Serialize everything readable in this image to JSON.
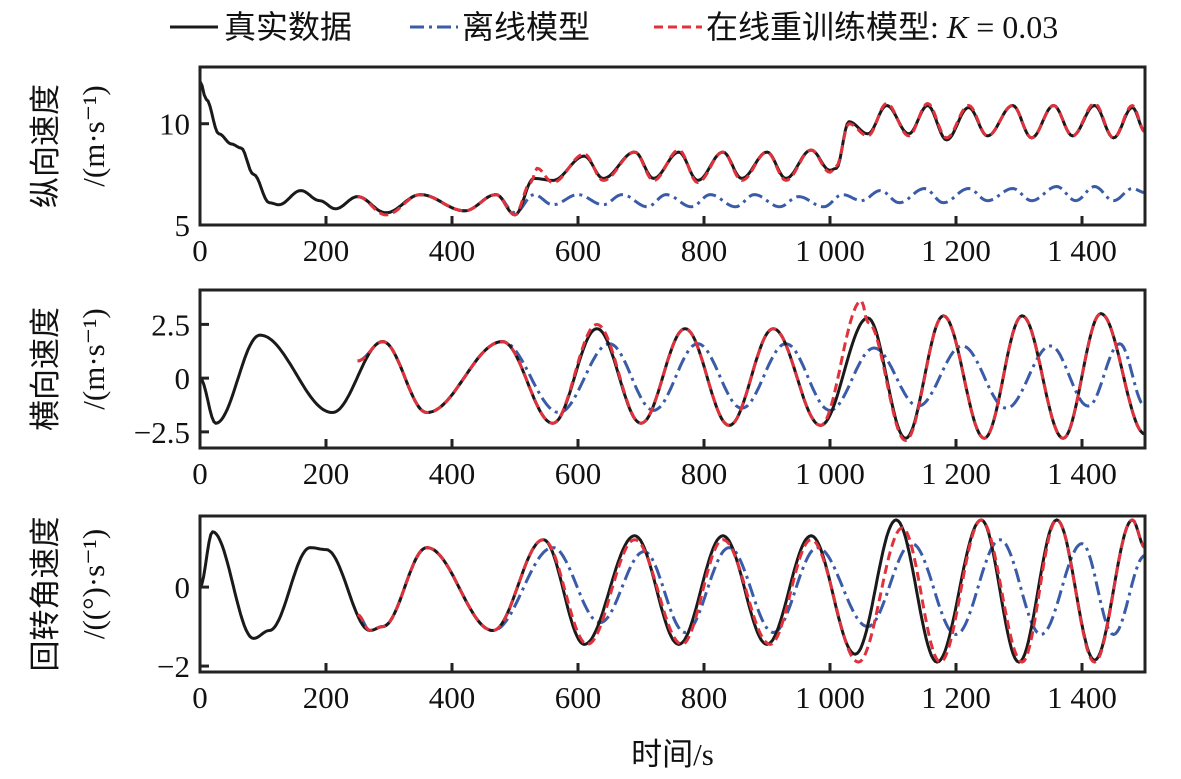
{
  "legend": {
    "true_label": "真实数据",
    "offline_label": "离线模型",
    "online_label": "在线重训练模型: ",
    "online_k": "K",
    "online_k_value": " = 0.03"
  },
  "colors": {
    "true": "#1a1a1a",
    "offline": "#3a5ba8",
    "online": "#e0323c"
  },
  "chart_data": [
    {
      "type": "line",
      "ylabel": "纵向速度",
      "yunit": "/(m·s⁻¹)",
      "xlim": [
        0,
        1500
      ],
      "ylim": [
        5,
        12.8
      ],
      "xticks": [
        0,
        200,
        400,
        600,
        800,
        1000,
        1200,
        1400
      ],
      "xtick_labels": [
        "0",
        "200",
        "400",
        "600",
        "800",
        "1 000",
        "1 200",
        "1 400"
      ],
      "yticks": [
        5,
        10
      ],
      "ytick_labels": [
        "5",
        "10"
      ],
      "series": [
        {
          "key": "true",
          "points": [
            [
              0,
              12.1
            ],
            [
              10,
              11.2
            ],
            [
              30,
              9.5
            ],
            [
              50,
              9.0
            ],
            [
              65,
              8.8
            ],
            [
              85,
              7.5
            ],
            [
              110,
              6.1
            ],
            [
              125,
              6.0
            ],
            [
              160,
              6.7
            ],
            [
              190,
              6.2
            ],
            [
              215,
              5.8
            ],
            [
              250,
              6.4
            ],
            [
              295,
              5.6
            ],
            [
              350,
              6.5
            ],
            [
              420,
              5.7
            ],
            [
              470,
              6.5
            ],
            [
              500,
              5.5
            ],
            [
              530,
              7.3
            ],
            [
              560,
              7.2
            ],
            [
              610,
              8.4
            ],
            [
              640,
              7.3
            ],
            [
              690,
              8.6
            ],
            [
              720,
              7.3
            ],
            [
              760,
              8.6
            ],
            [
              790,
              7.2
            ],
            [
              830,
              8.6
            ],
            [
              860,
              7.3
            ],
            [
              900,
              8.6
            ],
            [
              930,
              7.3
            ],
            [
              970,
              8.7
            ],
            [
              1000,
              7.7
            ],
            [
              1010,
              7.8
            ],
            [
              1030,
              10.1
            ],
            [
              1060,
              9.5
            ],
            [
              1090,
              10.9
            ],
            [
              1125,
              9.5
            ],
            [
              1155,
              10.9
            ],
            [
              1185,
              9.2
            ],
            [
              1220,
              10.8
            ],
            [
              1250,
              9.4
            ],
            [
              1290,
              10.9
            ],
            [
              1320,
              9.3
            ],
            [
              1355,
              10.9
            ],
            [
              1385,
              9.4
            ],
            [
              1420,
              10.9
            ],
            [
              1450,
              9.3
            ],
            [
              1480,
              10.8
            ],
            [
              1500,
              9.6
            ]
          ]
        },
        {
          "key": "offline",
          "points": [
            [
              250,
              6.4
            ],
            [
              295,
              5.6
            ],
            [
              350,
              6.5
            ],
            [
              420,
              5.7
            ],
            [
              470,
              6.5
            ],
            [
              500,
              5.6
            ],
            [
              530,
              6.5
            ],
            [
              560,
              6.0
            ],
            [
              600,
              6.5
            ],
            [
              640,
              6.0
            ],
            [
              670,
              6.5
            ],
            [
              710,
              5.9
            ],
            [
              740,
              6.5
            ],
            [
              780,
              5.9
            ],
            [
              810,
              6.5
            ],
            [
              850,
              5.9
            ],
            [
              880,
              6.5
            ],
            [
              920,
              5.9
            ],
            [
              950,
              6.4
            ],
            [
              990,
              5.9
            ],
            [
              1020,
              6.5
            ],
            [
              1050,
              6.2
            ],
            [
              1080,
              6.7
            ],
            [
              1110,
              6.1
            ],
            [
              1150,
              6.8
            ],
            [
              1180,
              6.1
            ],
            [
              1220,
              6.8
            ],
            [
              1250,
              6.2
            ],
            [
              1290,
              6.8
            ],
            [
              1320,
              6.2
            ],
            [
              1360,
              6.9
            ],
            [
              1390,
              6.2
            ],
            [
              1420,
              6.9
            ],
            [
              1450,
              6.2
            ],
            [
              1480,
              6.8
            ],
            [
              1500,
              6.6
            ]
          ]
        },
        {
          "key": "online",
          "points": [
            [
              250,
              6.4
            ],
            [
              295,
              5.5
            ],
            [
              350,
              6.5
            ],
            [
              420,
              5.7
            ],
            [
              470,
              6.5
            ],
            [
              500,
              5.5
            ],
            [
              525,
              7.1
            ],
            [
              535,
              7.8
            ],
            [
              560,
              7.1
            ],
            [
              610,
              8.5
            ],
            [
              640,
              7.2
            ],
            [
              690,
              8.6
            ],
            [
              720,
              7.2
            ],
            [
              760,
              8.7
            ],
            [
              790,
              7.1
            ],
            [
              830,
              8.6
            ],
            [
              860,
              7.2
            ],
            [
              900,
              8.6
            ],
            [
              930,
              7.2
            ],
            [
              970,
              8.7
            ],
            [
              1000,
              7.6
            ],
            [
              1010,
              7.9
            ],
            [
              1030,
              10.0
            ],
            [
              1060,
              9.4
            ],
            [
              1090,
              11.0
            ],
            [
              1125,
              9.4
            ],
            [
              1155,
              11.0
            ],
            [
              1185,
              9.3
            ],
            [
              1220,
              10.9
            ],
            [
              1250,
              9.4
            ],
            [
              1290,
              10.9
            ],
            [
              1320,
              9.3
            ],
            [
              1355,
              10.9
            ],
            [
              1385,
              9.4
            ],
            [
              1420,
              11.0
            ],
            [
              1450,
              9.3
            ],
            [
              1480,
              10.9
            ],
            [
              1500,
              9.6
            ]
          ]
        }
      ]
    },
    {
      "type": "line",
      "ylabel": "横向速度",
      "yunit": "/(m·s⁻¹)",
      "xlim": [
        0,
        1500
      ],
      "ylim": [
        -3.25,
        4.1
      ],
      "xticks": [
        0,
        200,
        400,
        600,
        800,
        1000,
        1200,
        1400
      ],
      "xtick_labels": [
        "0",
        "200",
        "400",
        "600",
        "800",
        "1 000",
        "1 200",
        "1 400"
      ],
      "yticks": [
        -2.5,
        0,
        2.5
      ],
      "ytick_labels": [
        "−2.5",
        "0",
        "2.5"
      ],
      "series": [
        {
          "key": "true",
          "points": [
            [
              0,
              0
            ],
            [
              25,
              -2.1
            ],
            [
              95,
              2.0
            ],
            [
              210,
              -1.6
            ],
            [
              290,
              1.7
            ],
            [
              360,
              -1.6
            ],
            [
              480,
              1.7
            ],
            [
              560,
              -2.1
            ],
            [
              630,
              2.3
            ],
            [
              700,
              -2.1
            ],
            [
              770,
              2.3
            ],
            [
              840,
              -2.2
            ],
            [
              910,
              2.3
            ],
            [
              985,
              -2.2
            ],
            [
              1060,
              2.8
            ],
            [
              1120,
              -2.8
            ],
            [
              1180,
              2.9
            ],
            [
              1245,
              -2.8
            ],
            [
              1305,
              2.9
            ],
            [
              1370,
              -2.8
            ],
            [
              1430,
              3.0
            ],
            [
              1500,
              -2.6
            ]
          ]
        },
        {
          "key": "offline",
          "points": [
            [
              250,
              0.8
            ],
            [
              290,
              1.7
            ],
            [
              360,
              -1.6
            ],
            [
              480,
              1.7
            ],
            [
              570,
              -1.6
            ],
            [
              650,
              1.6
            ],
            [
              720,
              -1.5
            ],
            [
              790,
              1.6
            ],
            [
              860,
              -1.4
            ],
            [
              930,
              1.6
            ],
            [
              1000,
              -1.5
            ],
            [
              1070,
              1.4
            ],
            [
              1140,
              -1.3
            ],
            [
              1210,
              1.5
            ],
            [
              1280,
              -1.4
            ],
            [
              1350,
              1.5
            ],
            [
              1410,
              -1.3
            ],
            [
              1460,
              1.6
            ],
            [
              1500,
              -1.3
            ]
          ]
        },
        {
          "key": "online",
          "points": [
            [
              250,
              0.8
            ],
            [
              290,
              1.7
            ],
            [
              360,
              -1.6
            ],
            [
              480,
              1.7
            ],
            [
              560,
              -2.1
            ],
            [
              630,
              2.5
            ],
            [
              700,
              -2.1
            ],
            [
              770,
              2.3
            ],
            [
              840,
              -2.2
            ],
            [
              910,
              2.3
            ],
            [
              985,
              -2.2
            ],
            [
              1050,
              3.6
            ],
            [
              1060,
              2.6
            ],
            [
              1120,
              -2.9
            ],
            [
              1180,
              2.9
            ],
            [
              1245,
              -2.8
            ],
            [
              1305,
              2.9
            ],
            [
              1370,
              -2.8
            ],
            [
              1430,
              3.0
            ],
            [
              1500,
              -2.6
            ]
          ]
        }
      ]
    },
    {
      "type": "line",
      "ylabel": "回转角速度",
      "yunit": "/((°)·s⁻¹)",
      "xlim": [
        0,
        1500
      ],
      "ylim": [
        -2.15,
        1.8
      ],
      "xticks": [
        0,
        200,
        400,
        600,
        800,
        1000,
        1200,
        1400
      ],
      "xtick_labels": [
        "0",
        "200",
        "400",
        "600",
        "800",
        "1 000",
        "1 200",
        "1 400"
      ],
      "yticks": [
        -2,
        0
      ],
      "ytick_labels": [
        "−2",
        "0"
      ],
      "series": [
        {
          "key": "true",
          "points": [
            [
              0,
              0
            ],
            [
              20,
              1.4
            ],
            [
              85,
              -1.3
            ],
            [
              110,
              -1.1
            ],
            [
              175,
              1.0
            ],
            [
              200,
              0.95
            ],
            [
              270,
              -1.1
            ],
            [
              290,
              -1.0
            ],
            [
              360,
              1.0
            ],
            [
              465,
              -1.1
            ],
            [
              545,
              1.2
            ],
            [
              610,
              -1.45
            ],
            [
              690,
              1.3
            ],
            [
              760,
              -1.45
            ],
            [
              830,
              1.3
            ],
            [
              900,
              -1.45
            ],
            [
              970,
              1.3
            ],
            [
              1040,
              -1.7
            ],
            [
              1105,
              1.7
            ],
            [
              1170,
              -1.9
            ],
            [
              1240,
              1.7
            ],
            [
              1300,
              -1.9
            ],
            [
              1360,
              1.7
            ],
            [
              1420,
              -1.85
            ],
            [
              1480,
              1.7
            ],
            [
              1500,
              1.0
            ]
          ]
        },
        {
          "key": "offline",
          "points": [
            [
              250,
              -0.7
            ],
            [
              270,
              -1.1
            ],
            [
              290,
              -1.0
            ],
            [
              360,
              1.0
            ],
            [
              465,
              -1.1
            ],
            [
              560,
              1.0
            ],
            [
              635,
              -0.9
            ],
            [
              705,
              0.9
            ],
            [
              770,
              -1.15
            ],
            [
              840,
              1.0
            ],
            [
              910,
              -1.15
            ],
            [
              980,
              1.0
            ],
            [
              1060,
              -1.0
            ],
            [
              1130,
              1.1
            ],
            [
              1200,
              -1.2
            ],
            [
              1270,
              1.2
            ],
            [
              1335,
              -1.2
            ],
            [
              1400,
              1.1
            ],
            [
              1450,
              -1.2
            ],
            [
              1500,
              0.8
            ]
          ]
        },
        {
          "key": "online",
          "points": [
            [
              250,
              -0.7
            ],
            [
              270,
              -1.1
            ],
            [
              290,
              -1.0
            ],
            [
              360,
              1.0
            ],
            [
              465,
              -1.1
            ],
            [
              545,
              1.2
            ],
            [
              615,
              -1.45
            ],
            [
              690,
              1.2
            ],
            [
              765,
              -1.45
            ],
            [
              830,
              1.2
            ],
            [
              905,
              -1.45
            ],
            [
              970,
              1.2
            ],
            [
              1045,
              -1.9
            ],
            [
              1115,
              1.5
            ],
            [
              1175,
              -1.9
            ],
            [
              1240,
              1.7
            ],
            [
              1305,
              -1.9
            ],
            [
              1360,
              1.7
            ],
            [
              1420,
              -1.9
            ],
            [
              1480,
              1.7
            ],
            [
              1500,
              1.0
            ]
          ]
        }
      ]
    }
  ]
}
